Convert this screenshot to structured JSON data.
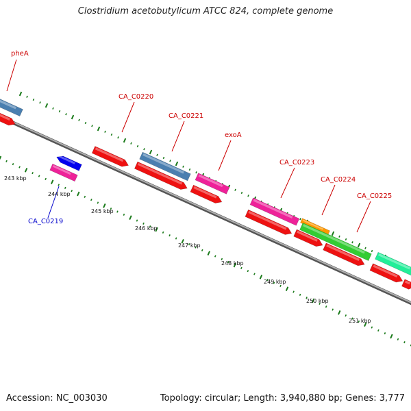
{
  "title": "Clostridium acetobutylicum ATCC 824, complete genome",
  "footer": {
    "accession": "Accession: NC_003030",
    "summary": "Topology: circular; Length: 3,940,880 bp; Genes: 3,777"
  },
  "colors": {
    "label_red": "#cc0000",
    "label_blue": "#0000cc",
    "tick_green": "#1a7a1a",
    "backbone_gray": "#808080"
  },
  "gene_labels": [
    {
      "id": "pheA",
      "text": "pheA",
      "color": "#cc0000"
    },
    {
      "id": "CA_C0219",
      "text": "CA_C0219",
      "color": "#0000cc"
    },
    {
      "id": "CA_C0220",
      "text": "CA_C0220",
      "color": "#cc0000"
    },
    {
      "id": "CA_C0221",
      "text": "CA_C0221",
      "color": "#cc0000"
    },
    {
      "id": "exoA",
      "text": "exoA",
      "color": "#cc0000"
    },
    {
      "id": "CA_C0223",
      "text": "CA_C0223",
      "color": "#cc0000"
    },
    {
      "id": "CA_C0224",
      "text": "CA_C0224",
      "color": "#cc0000"
    },
    {
      "id": "CA_C0225",
      "text": "CA_C0225",
      "color": "#cc0000"
    }
  ],
  "kbp_ticks": [
    "243 kbp",
    "244 kbp",
    "245 kbp",
    "246 kbp",
    "247 kbp",
    "248 kbp",
    "249 kbp",
    "250 kbp",
    "251 kbp"
  ]
}
